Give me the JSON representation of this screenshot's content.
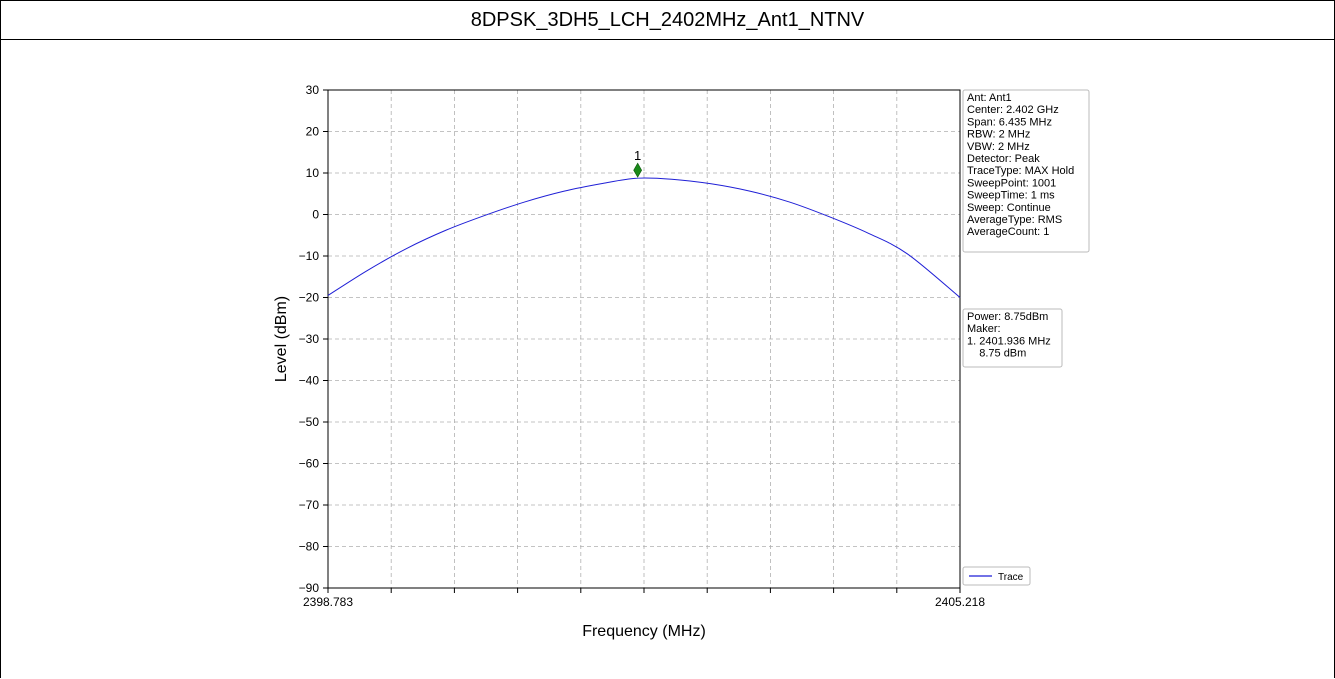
{
  "header": {
    "title": "8DPSK_3DH5_LCH_2402MHz_Ant1_NTNV"
  },
  "chart_data": {
    "type": "line",
    "title": "8DPSK_3DH5_LCH_2402MHz_Ant1_NTNV",
    "xlabel": "Frequency (MHz)",
    "ylabel": "Level (dBm)",
    "xlim": [
      2398.783,
      2405.218
    ],
    "ylim": [
      -90,
      30
    ],
    "x_tick_labels": [
      "2398.783",
      "2405.218"
    ],
    "x_tick_count": 11,
    "y_ticks": [
      30,
      20,
      10,
      0,
      -10,
      -20,
      -30,
      -40,
      -50,
      -60,
      -70,
      -80,
      -90
    ],
    "y_tick_labels": [
      "30",
      "20",
      "10",
      "0",
      "−10",
      "−20",
      "−30",
      "−40",
      "−50",
      "−60",
      "−70",
      "−80",
      "−90"
    ],
    "grid": true,
    "series": [
      {
        "name": "Trace",
        "color": "#1f1fd6",
        "x": [
          2398.783,
          2399.183,
          2399.583,
          2399.983,
          2400.383,
          2400.783,
          2401.183,
          2401.583,
          2401.936,
          2402.283,
          2402.683,
          2403.083,
          2403.483,
          2403.883,
          2404.283,
          2404.683,
          2405.218
        ],
        "y": [
          -19.5,
          -13.5,
          -8.2,
          -3.8,
          -0.2,
          3.0,
          5.6,
          7.5,
          8.75,
          8.5,
          7.4,
          5.6,
          3.0,
          -0.5,
          -4.5,
          -9.5,
          -20.0
        ]
      }
    ],
    "marker": {
      "label": "1",
      "x": 2401.936,
      "y": 8.75,
      "color": "#1a8a1a"
    },
    "legend": {
      "placement": "bottom-right",
      "entries": [
        "Trace"
      ]
    },
    "info_box": [
      "Ant: Ant1",
      "Center: 2.402 GHz",
      "Span: 6.435 MHz",
      "RBW: 2 MHz",
      "VBW: 2 MHz",
      "Detector: Peak",
      "TraceType: MAX Hold",
      "SweepPoint: 1001",
      "SweepTime: 1 ms",
      "Sweep: Continue",
      "AverageType: RMS",
      "AverageCount: 1"
    ],
    "marker_box": [
      "Power: 8.75dBm",
      "Maker:",
      "1. 2401.936 MHz",
      "    8.75 dBm"
    ]
  }
}
